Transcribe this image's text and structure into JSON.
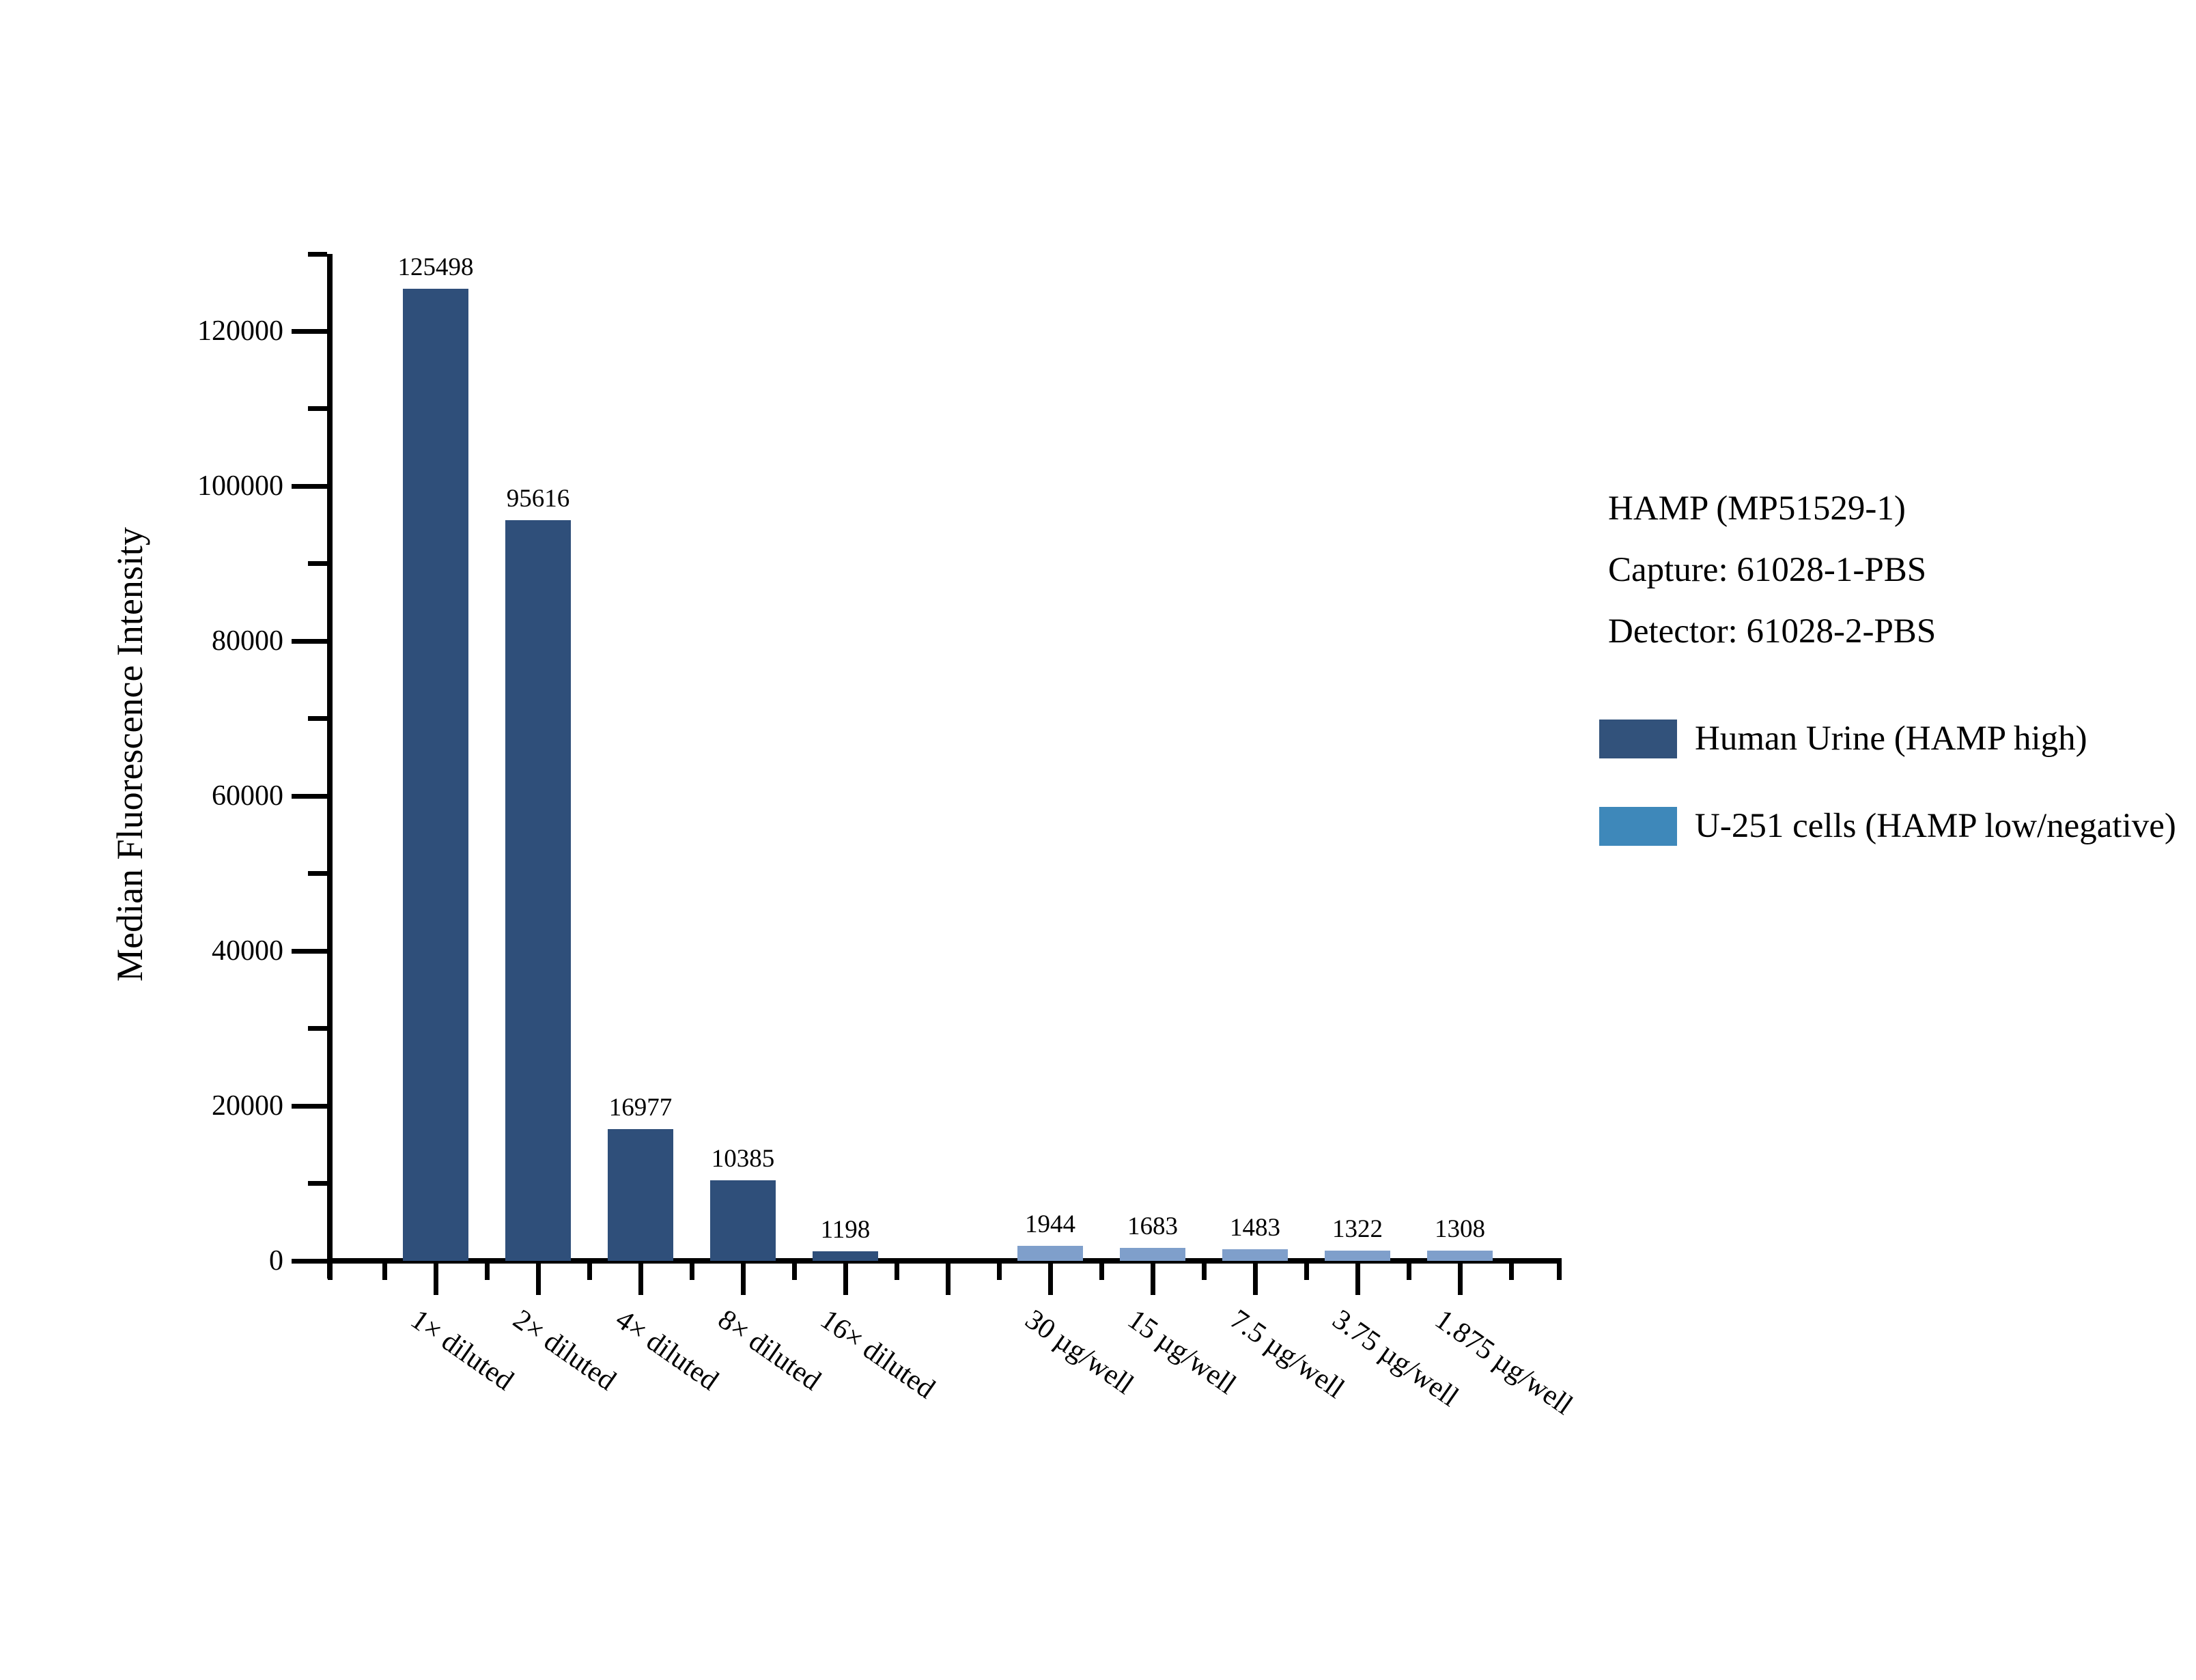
{
  "chart_data": {
    "type": "bar",
    "title": "",
    "xlabel": "",
    "ylabel": "Median Fluorescence Intensity",
    "ylim": [
      0,
      130000
    ],
    "yticks_major": [
      0,
      20000,
      40000,
      60000,
      80000,
      100000,
      120000
    ],
    "ytick_minor_interval": 10000,
    "grid": false,
    "legend_position": "right-outside",
    "categories": [
      "1× diluted",
      "2× diluted",
      "4× diluted",
      "8× diluted",
      "16× diluted",
      "",
      "30 µg/well",
      "15 µg/well",
      "7.5 µg/well",
      "3.75 µg/well",
      "1.875 µg/well"
    ],
    "series": [
      {
        "name": "Human Urine (HAMP high)",
        "color": "#2F4F7A",
        "values": [
          125498,
          95616,
          16977,
          10385,
          1198,
          null,
          null,
          null,
          null,
          null,
          null
        ]
      },
      {
        "name": "U-251 cells (HAMP low/negative)",
        "color": "#7F9FCB",
        "values": [
          null,
          null,
          null,
          null,
          null,
          null,
          1944,
          1683,
          1483,
          1322,
          1308
        ]
      }
    ]
  },
  "annotation": {
    "line1": "HAMP (MP51529-1)",
    "line2": "Capture: 61028-1-PBS",
    "line3": "Detector: 61028-2-PBS"
  },
  "legend": {
    "items": [
      {
        "label": "Human Urine (HAMP high)",
        "swatch_color": "#32527B"
      },
      {
        "label": "U-251 cells (HAMP low/negative)",
        "swatch_color": "#3E88BA"
      }
    ]
  }
}
